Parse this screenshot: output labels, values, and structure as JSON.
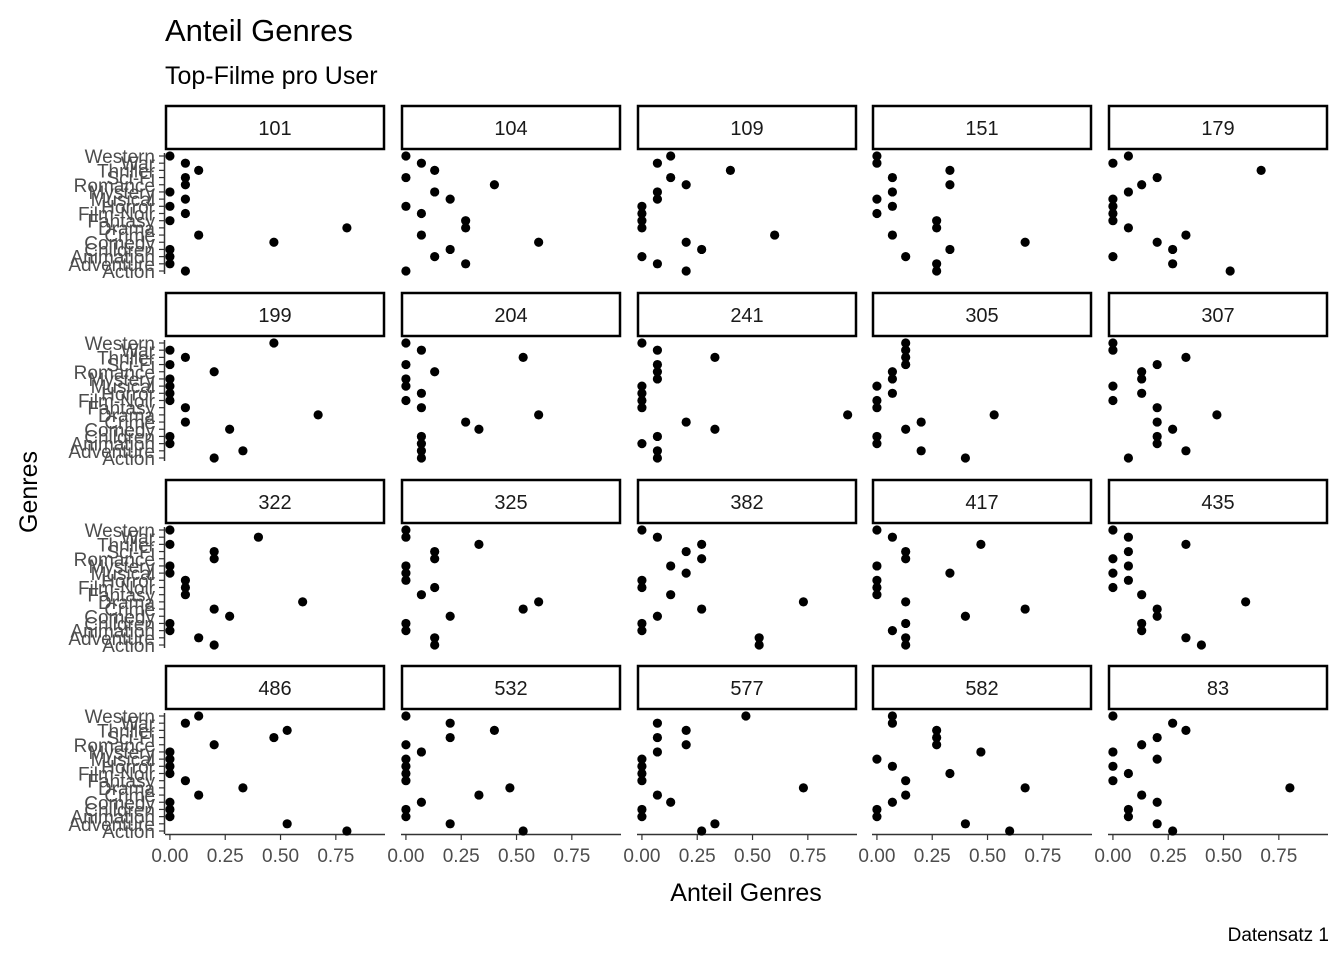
{
  "chart_data": {
    "type": "scatter",
    "title": "Anteil Genres",
    "subtitle": "Top-Filme pro User",
    "xlabel": "Anteil Genres",
    "ylabel": "Genres",
    "caption": "Datensatz 1",
    "xlim": [
      -0.02,
      0.97
    ],
    "x_ticks": [
      0,
      0.25,
      0.5,
      0.75
    ],
    "x_tick_labels": [
      "0.00",
      "0.25",
      "0.50",
      "0.75"
    ],
    "grid": false,
    "facet_layout": {
      "columns": 5,
      "rows": 4
    },
    "genres": [
      "Action",
      "Adventure",
      "Animation",
      "Children",
      "Comedy",
      "Crime",
      "Drama",
      "Fantasy",
      "Film-Noir",
      "Horror",
      "Musical",
      "Mystery",
      "Romance",
      "Sci-Fi",
      "Thriller",
      "War",
      "Western"
    ],
    "y_tick_labels_shown": [
      "Western",
      "Thriller",
      "War",
      "Romance",
      "Sci-Fi",
      "Musical",
      "Mystery",
      "Horror",
      "Film-Noir",
      "Fantasy",
      "Drama",
      "Crime",
      "Comedy",
      "Animation",
      "Children",
      "Adventure",
      "Action"
    ],
    "panels": [
      {
        "user": "101",
        "values": [
          0.07,
          0.0,
          0.0,
          0.0,
          0.47,
          0.13,
          0.8,
          0.0,
          0.07,
          0.0,
          0.07,
          0.0,
          0.07,
          0.07,
          0.13,
          0.07,
          0.0
        ]
      },
      {
        "user": "104",
        "values": [
          0.0,
          0.27,
          0.13,
          0.2,
          0.6,
          0.07,
          0.27,
          0.27,
          0.07,
          0.0,
          0.2,
          0.13,
          0.4,
          0.0,
          0.13,
          0.07,
          0.0
        ]
      },
      {
        "user": "109",
        "values": [
          0.2,
          0.07,
          0.0,
          0.27,
          0.2,
          0.6,
          0.0,
          0.0,
          0.0,
          0.0,
          0.07,
          0.07,
          0.2,
          0.13,
          0.4,
          0.07,
          0.13
        ]
      },
      {
        "user": "151",
        "values": [
          0.27,
          0.27,
          0.13,
          0.33,
          0.67,
          0.07,
          0.27,
          0.27,
          0.0,
          0.07,
          0.0,
          0.07,
          0.33,
          0.07,
          0.33,
          0.0,
          0.0
        ]
      },
      {
        "user": "179",
        "values": [
          0.53,
          0.27,
          0.0,
          0.27,
          0.2,
          0.33,
          0.07,
          0.0,
          0.0,
          0.0,
          0.0,
          0.07,
          0.13,
          0.2,
          0.67,
          0.0,
          0.07
        ]
      },
      {
        "user": "199",
        "values": [
          0.2,
          0.33,
          0.0,
          0.0,
          0.27,
          0.07,
          0.67,
          0.07,
          0.0,
          0.0,
          0.0,
          0.0,
          0.2,
          0.0,
          0.07,
          0.0,
          0.47
        ]
      },
      {
        "user": "204",
        "values": [
          0.07,
          0.07,
          0.07,
          0.07,
          0.33,
          0.27,
          0.6,
          0.07,
          0.0,
          0.07,
          0.0,
          0.0,
          0.13,
          0.0,
          0.53,
          0.07,
          0.0
        ]
      },
      {
        "user": "241",
        "values": [
          0.07,
          0.07,
          0.0,
          0.07,
          0.33,
          0.2,
          0.93,
          0.0,
          0.0,
          0.0,
          0.0,
          0.07,
          0.07,
          0.07,
          0.33,
          0.07,
          0.0
        ]
      },
      {
        "user": "305",
        "values": [
          0.4,
          0.2,
          0.0,
          0.0,
          0.13,
          0.2,
          0.53,
          0.0,
          0.0,
          0.07,
          0.0,
          0.07,
          0.07,
          0.13,
          0.13,
          0.13,
          0.13
        ]
      },
      {
        "user": "307",
        "values": [
          0.07,
          0.33,
          0.2,
          0.2,
          0.27,
          0.2,
          0.47,
          0.2,
          0.0,
          0.13,
          0.0,
          0.13,
          0.13,
          0.2,
          0.33,
          0.0,
          0.0
        ]
      },
      {
        "user": "322",
        "values": [
          0.2,
          0.13,
          0.0,
          0.0,
          0.27,
          0.2,
          0.6,
          0.07,
          0.07,
          0.07,
          0.0,
          0.0,
          0.2,
          0.2,
          0.0,
          0.4,
          0.0
        ]
      },
      {
        "user": "325",
        "values": [
          0.13,
          0.13,
          0.0,
          0.0,
          0.2,
          0.53,
          0.6,
          0.07,
          0.13,
          0.0,
          0.0,
          0.0,
          0.13,
          0.13,
          0.33,
          0.0,
          0.0
        ]
      },
      {
        "user": "382",
        "values": [
          0.53,
          0.53,
          0.0,
          0.0,
          0.07,
          0.27,
          0.73,
          0.13,
          0.0,
          0.0,
          0.2,
          0.13,
          0.27,
          0.2,
          0.27,
          0.07,
          0.0
        ]
      },
      {
        "user": "417",
        "values": [
          0.13,
          0.13,
          0.07,
          0.13,
          0.4,
          0.67,
          0.13,
          0.0,
          0.0,
          0.0,
          0.33,
          0.0,
          0.13,
          0.13,
          0.47,
          0.07,
          0.0
        ]
      },
      {
        "user": "435",
        "values": [
          0.4,
          0.33,
          0.13,
          0.13,
          0.2,
          0.2,
          0.6,
          0.13,
          0.0,
          0.07,
          0.0,
          0.07,
          0.0,
          0.07,
          0.33,
          0.07,
          0.0
        ]
      },
      {
        "user": "486",
        "values": [
          0.8,
          0.53,
          0.0,
          0.0,
          0.0,
          0.13,
          0.33,
          0.07,
          0.0,
          0.0,
          0.0,
          0.0,
          0.2,
          0.47,
          0.53,
          0.07,
          0.13
        ]
      },
      {
        "user": "532",
        "values": [
          0.53,
          0.2,
          0.0,
          0.0,
          0.07,
          0.33,
          0.47,
          0.0,
          0.0,
          0.0,
          0.0,
          0.07,
          0.0,
          0.2,
          0.4,
          0.2,
          0.0
        ]
      },
      {
        "user": "577",
        "values": [
          0.27,
          0.33,
          0.0,
          0.0,
          0.13,
          0.07,
          0.73,
          0.0,
          0.0,
          0.0,
          0.0,
          0.07,
          0.2,
          0.07,
          0.2,
          0.07,
          0.47
        ]
      },
      {
        "user": "582",
        "values": [
          0.6,
          0.4,
          0.0,
          0.0,
          0.07,
          0.13,
          0.67,
          0.13,
          0.33,
          0.07,
          0.0,
          0.47,
          0.27,
          0.27,
          0.27,
          0.07,
          0.07
        ]
      },
      {
        "user": "83",
        "values": [
          0.27,
          0.2,
          0.07,
          0.07,
          0.2,
          0.13,
          0.8,
          0.0,
          0.07,
          0.0,
          0.2,
          0.0,
          0.13,
          0.2,
          0.33,
          0.27,
          0.0
        ]
      }
    ]
  }
}
